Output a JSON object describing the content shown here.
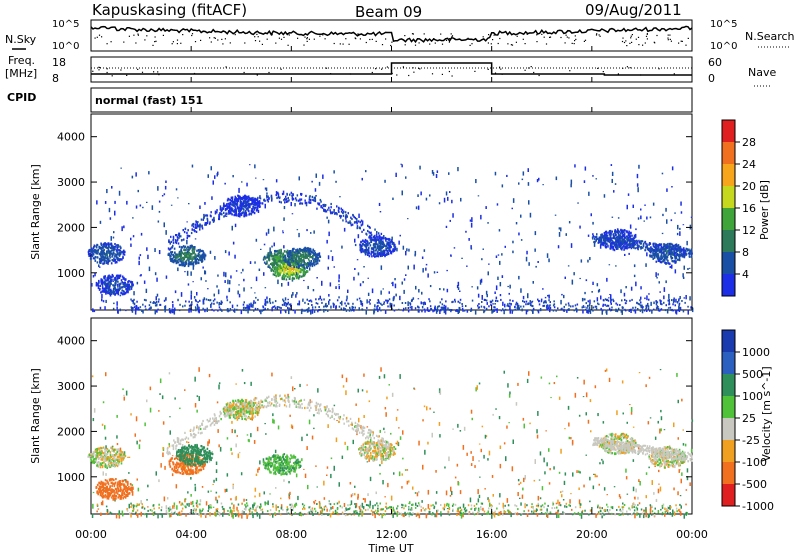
{
  "header": {
    "station": "Kapuskasing (fitACF)",
    "beam": "Beam 09",
    "date": "09/Aug/2011"
  },
  "panels": {
    "nsky_label": "N.Sky",
    "nsearch_label": "N.Search",
    "freq_label_1": "Freq.",
    "freq_label_2": "[MHz]",
    "nave_label": "Nave",
    "cpid_label": "CPID",
    "cpid_value": "normal (fast) 151",
    "noise_ticks_left": [
      "10^5",
      "10^0"
    ],
    "noise_ticks_right": [
      "10^5",
      "10^0"
    ],
    "freq_ticks": [
      "18",
      "8"
    ],
    "nave_ticks": [
      "60",
      "0"
    ]
  },
  "colors": {
    "power_scale": [
      "#1c2ee6",
      "#1a4fa6",
      "#2d7a5a",
      "#3fa53a",
      "#c6d81e",
      "#f7a51b",
      "#f07020",
      "#e02020"
    ],
    "velocity_scale": [
      "#1a3ab0",
      "#2b5fc0",
      "#2f8f5a",
      "#4fc23a",
      "#c8c8c0",
      "#f0a020",
      "#f07020",
      "#e02020"
    ]
  },
  "chart_data": [
    {
      "type": "heatmap",
      "panel": "power",
      "ylabel": "Slant Range [km]",
      "colorbar_label": "Power [dB]",
      "colorbar_ticks": [
        "4",
        "8",
        "12",
        "16",
        "20",
        "24",
        "28"
      ],
      "ylim": [
        180,
        4500
      ],
      "yticks": [
        "1000",
        "2000",
        "3000",
        "4000"
      ],
      "blobs": [
        {
          "t": 0.9,
          "r": 750,
          "v": 6
        },
        {
          "t": 0.6,
          "r": 1450,
          "v": 8
        },
        {
          "t": 3.8,
          "r": 1400,
          "v": 12
        },
        {
          "t": 7.6,
          "r": 1300,
          "v": 16
        },
        {
          "t": 7.9,
          "r": 1100,
          "v": 22
        },
        {
          "t": 8.4,
          "r": 1350,
          "v": 12
        },
        {
          "t": 6.0,
          "r": 2500,
          "v": 5
        },
        {
          "t": 11.4,
          "r": 1600,
          "v": 7
        },
        {
          "t": 21.0,
          "r": 1750,
          "v": 6
        },
        {
          "t": 23.0,
          "r": 1450,
          "v": 9
        }
      ]
    },
    {
      "type": "heatmap",
      "panel": "velocity",
      "ylabel": "Slant Range [km]",
      "colorbar_label": "Velocity [m s^-1]",
      "colorbar_ticks": [
        "1000",
        "500",
        "100",
        "25",
        "-25",
        "-100",
        "-500",
        "-1000"
      ],
      "xlabel": "Time UT",
      "xticks": [
        "00:00",
        "04:00",
        "08:00",
        "12:00",
        "16:00",
        "20:00",
        "00:00"
      ],
      "ylim": [
        180,
        4500
      ],
      "yticks": [
        "1000",
        "2000",
        "3000",
        "4000"
      ],
      "blobs": [
        {
          "t": 0.9,
          "r": 750,
          "v": -200
        },
        {
          "t": 0.6,
          "r": 1450,
          "v": 0
        },
        {
          "t": 3.8,
          "r": 1300,
          "v": -150
        },
        {
          "t": 4.1,
          "r": 1500,
          "v": 200
        },
        {
          "t": 7.6,
          "r": 1300,
          "v": 80
        },
        {
          "t": 6.0,
          "r": 2500,
          "v": 0
        },
        {
          "t": 11.4,
          "r": 1600,
          "v": 0
        },
        {
          "t": 21.0,
          "r": 1750,
          "v": 0
        },
        {
          "t": 23.0,
          "r": 1450,
          "v": 0
        }
      ]
    }
  ]
}
